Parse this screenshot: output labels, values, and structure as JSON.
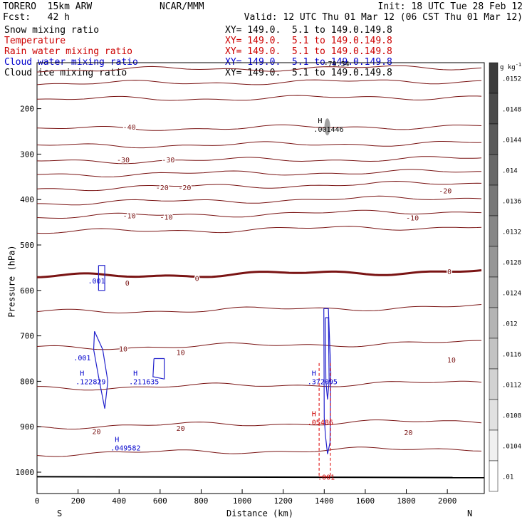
{
  "header": {
    "model": "TORERO  15km ARW",
    "org": "NCAR/MMM",
    "init": "Init: 18 UTC Tue 28 Feb 12",
    "fcst": "Fcst:   42 h",
    "valid": "Valid: 12 UTC Thu 01 Mar 12 (06 CST Thu 01 Mar 12)"
  },
  "legend": [
    {
      "name": "Snow mixing ratio",
      "color": "#000000",
      "xy": "XY= 149.0.  5.1 to 149.0.149.8"
    },
    {
      "name": "Temperature",
      "color": "#cc0000",
      "xy": "XY= 149.0.  5.1 to 149.0.149.8"
    },
    {
      "name": "Rain water mixing ratio",
      "color": "#cc0000",
      "xy": "XY= 149.0.  5.1 to 149.0.149.8"
    },
    {
      "name": "Cloud water mixing ratio",
      "color": "#0000cc",
      "xy": "XY= 149.0.  5.1 to 149.0.149.8"
    },
    {
      "name": "Cloud ice mixing ratio",
      "color": "#000000",
      "xy": "XY= 149.0.  5.1 to 149.0.149.8"
    }
  ],
  "axes": {
    "ylabel": "Pressure (hPa)",
    "xlabel": "Distance (km)",
    "left_end": "S",
    "right_end": "N"
  },
  "colorbar": {
    "unit": "g kg",
    "unit_exp": "-1",
    "ticks": [
      ".0152",
      ".0148",
      ".0144",
      ".014",
      ".0136",
      ".0132",
      ".0128",
      ".0124",
      ".012",
      ".0116",
      ".0112",
      ".0108",
      ".0104",
      ".01"
    ]
  },
  "chart_data": {
    "type": "contour",
    "x_range": [
      0,
      2180
    ],
    "y_range": [
      1050,
      100
    ],
    "x_ticks": [
      0,
      200,
      400,
      600,
      800,
      1000,
      1200,
      1400,
      1600,
      1800,
      2000
    ],
    "y_ticks": [
      200,
      300,
      400,
      500,
      600,
      700,
      800,
      900,
      1000
    ],
    "temperature_contours": [
      {
        "level": -55,
        "p": 115,
        "w": 1
      },
      {
        "level": -50,
        "p": 145,
        "w": 1
      },
      {
        "level": -45,
        "p": 180,
        "w": 1
      },
      {
        "level": -40,
        "p": 245,
        "w": 1
      },
      {
        "level": -35,
        "p": 282,
        "w": 1
      },
      {
        "level": -30,
        "p": 316,
        "w": 1
      },
      {
        "level": -25,
        "p": 345,
        "w": 1
      },
      {
        "level": -20,
        "p": 376,
        "w": 1
      },
      {
        "level": -15,
        "p": 408,
        "w": 1
      },
      {
        "level": -10,
        "p": 438,
        "w": 1
      },
      {
        "level": -5,
        "p": 472,
        "w": 1
      },
      {
        "level": 0,
        "p": 570,
        "w": 3
      },
      {
        "level": 5,
        "p": 648,
        "w": 1
      },
      {
        "level": 10,
        "p": 727,
        "w": 1
      },
      {
        "level": 15,
        "p": 815,
        "w": 1
      },
      {
        "level": 20,
        "p": 900,
        "w": 1
      },
      {
        "level": 25,
        "p": 960,
        "w": 1
      }
    ],
    "temperature_labels": [
      {
        "text": "-40",
        "x": 450,
        "p": 240
      },
      {
        "text": "-30",
        "x": 420,
        "p": 312
      },
      {
        "text": "-30",
        "x": 640,
        "p": 312
      },
      {
        "text": "-20",
        "x": 610,
        "p": 373
      },
      {
        "text": "-20",
        "x": 720,
        "p": 373
      },
      {
        "text": "-20",
        "x": 1990,
        "p": 380
      },
      {
        "text": "-10",
        "x": 450,
        "p": 435
      },
      {
        "text": "-10",
        "x": 630,
        "p": 438
      },
      {
        "text": "-10",
        "x": 1830,
        "p": 440
      },
      {
        "text": "0",
        "x": 440,
        "p": 583
      },
      {
        "text": "0",
        "x": 780,
        "p": 573
      },
      {
        "text": "0",
        "x": 2010,
        "p": 558
      },
      {
        "text": "10",
        "x": 420,
        "p": 728
      },
      {
        "text": "10",
        "x": 700,
        "p": 736
      },
      {
        "text": "10",
        "x": 2020,
        "p": 752
      },
      {
        "text": "20",
        "x": 290,
        "p": 910
      },
      {
        "text": "20",
        "x": 700,
        "p": 903
      },
      {
        "text": "20",
        "x": 1810,
        "p": 912
      },
      {
        "text": "20",
        "x": 1040,
        "p": 1240
      }
    ],
    "maxima": [
      {
        "mark": "H",
        "value": ".001446",
        "x": 1390,
        "p": 232,
        "color": "#000000"
      },
      {
        "mark": "H",
        "value": ".122829",
        "x": 230,
        "p": 788,
        "color": "#0000cc"
      },
      {
        "mark": "H",
        "value": ".211635",
        "x": 490,
        "p": 788,
        "color": "#0000cc"
      },
      {
        "mark": "H",
        "value": ".372095",
        "x": 1360,
        "p": 788,
        "color": "#0000cc"
      },
      {
        "mark": "H",
        "value": ".05486",
        "x": 1360,
        "p": 877,
        "color": "#cc0000"
      },
      {
        "mark": "H",
        "value": ".049582",
        "x": 400,
        "p": 933,
        "color": "#0000cc"
      }
    ],
    "contour_labels": [
      {
        "text": ".001",
        "x": 290,
        "p": 578,
        "color": "#0000cc"
      },
      {
        "text": ".001",
        "x": 220,
        "p": 748,
        "color": "#0000cc"
      },
      {
        "text": ".001",
        "x": 1410,
        "p": 1010,
        "color": "#cc0000"
      },
      {
        "text": "-79.54",
        "x": 1460,
        "p": 100,
        "color": "#000000"
      }
    ]
  }
}
